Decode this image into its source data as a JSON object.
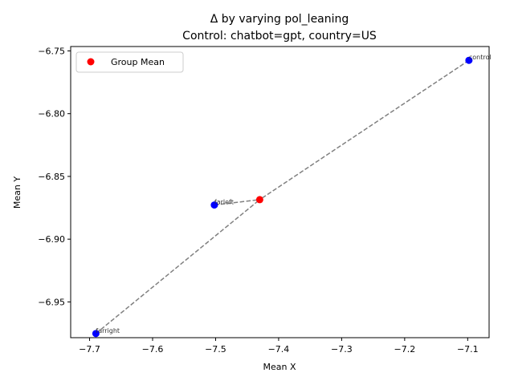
{
  "chart_data": {
    "type": "scatter",
    "title_line1": "Δ by varying pol_leaning",
    "title_line2": "Control: chatbot=gpt, country=US",
    "xlabel": "Mean X",
    "ylabel": "Mean Y",
    "xlim": [
      -7.73,
      -7.066
    ],
    "ylim": [
      -6.9785,
      -6.7465
    ],
    "xticks": [
      -7.7,
      -7.6,
      -7.5,
      -7.4,
      -7.3,
      -7.2,
      -7.1
    ],
    "xtick_labels": [
      "−7.7",
      "−7.6",
      "−7.5",
      "−7.4",
      "−7.3",
      "−7.2",
      "−7.1"
    ],
    "yticks": [
      -6.95,
      -6.9,
      -6.85,
      -6.8,
      -6.75
    ],
    "ytick_labels": [
      "−6.95",
      "−6.90",
      "−6.85",
      "−6.80",
      "−6.75"
    ],
    "points": [
      {
        "label": "control",
        "x": -7.098,
        "y": -6.7575
      },
      {
        "label": "farleft",
        "x": -7.502,
        "y": -6.8728
      },
      {
        "label": "farright",
        "x": -7.69,
        "y": -6.9752
      }
    ],
    "group_mean": {
      "x": -7.43,
      "y": -6.8685
    },
    "legend": {
      "label": "Group Mean",
      "placement": "upper-left"
    },
    "colors": {
      "points": "#0000ff",
      "mean": "#ff0000",
      "lines": "#808080"
    }
  }
}
